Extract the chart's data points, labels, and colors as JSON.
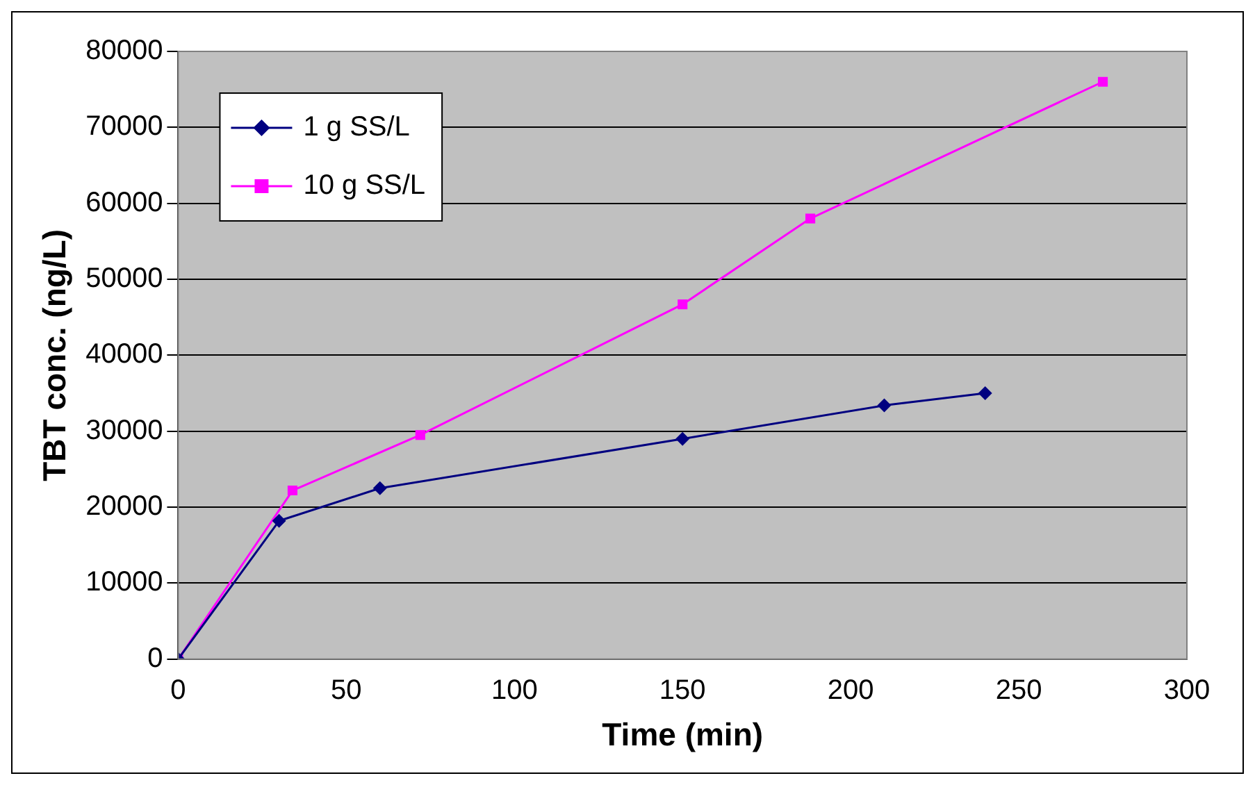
{
  "chart_data": {
    "type": "line",
    "xlabel": "Time (min)",
    "ylabel": "TBT conc. (ng/L)",
    "xlim": [
      0,
      300
    ],
    "xticks": [
      0,
      50,
      100,
      150,
      200,
      250,
      300
    ],
    "ylim": [
      0,
      80000
    ],
    "yticks": [
      0,
      10000,
      20000,
      30000,
      40000,
      50000,
      60000,
      70000,
      80000
    ],
    "grid": "y",
    "legend": "top left",
    "line_style": "solid",
    "series": [
      {
        "name": "1 g SS/L",
        "color": "#000080",
        "marker": "diamond",
        "x": [
          0,
          30,
          60,
          150,
          210,
          240
        ],
        "values": [
          0,
          18200,
          22500,
          29000,
          33400,
          35000
        ]
      },
      {
        "name": "10 g SS/L",
        "color": "#ff00ff",
        "marker": "square",
        "x": [
          0,
          34,
          72,
          150,
          188,
          275
        ],
        "values": [
          0,
          22200,
          29500,
          46700,
          58000,
          76000
        ]
      }
    ]
  }
}
